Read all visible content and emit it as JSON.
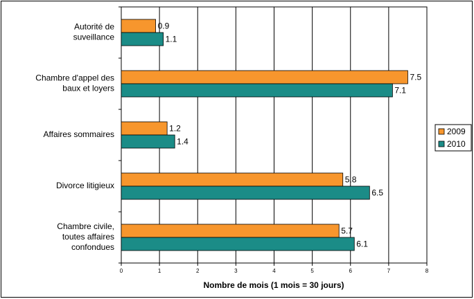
{
  "chart_data": {
    "type": "bar",
    "orientation": "horizontal",
    "categories": [
      "Autorité de\nsuveillance",
      "Chambre d'appel des\nbaux et loyers",
      "Affaires sommaires",
      "Divorce litigieux",
      "Chambre civile,\ntoutes affaires\nconfondues"
    ],
    "series": [
      {
        "name": "2009",
        "color": "#f7962d",
        "values": [
          0.9,
          7.5,
          1.2,
          5.8,
          5.7
        ]
      },
      {
        "name": "2010",
        "color": "#1b8c87",
        "values": [
          1.1,
          7.1,
          1.4,
          6.5,
          6.1
        ]
      }
    ],
    "xlim": [
      0,
      8
    ],
    "xticks": [
      0,
      1,
      2,
      3,
      4,
      5,
      6,
      7,
      8
    ],
    "x_label": "Nombre de mois (1 mois = 30 jours)",
    "grid": true,
    "legend": "right"
  }
}
